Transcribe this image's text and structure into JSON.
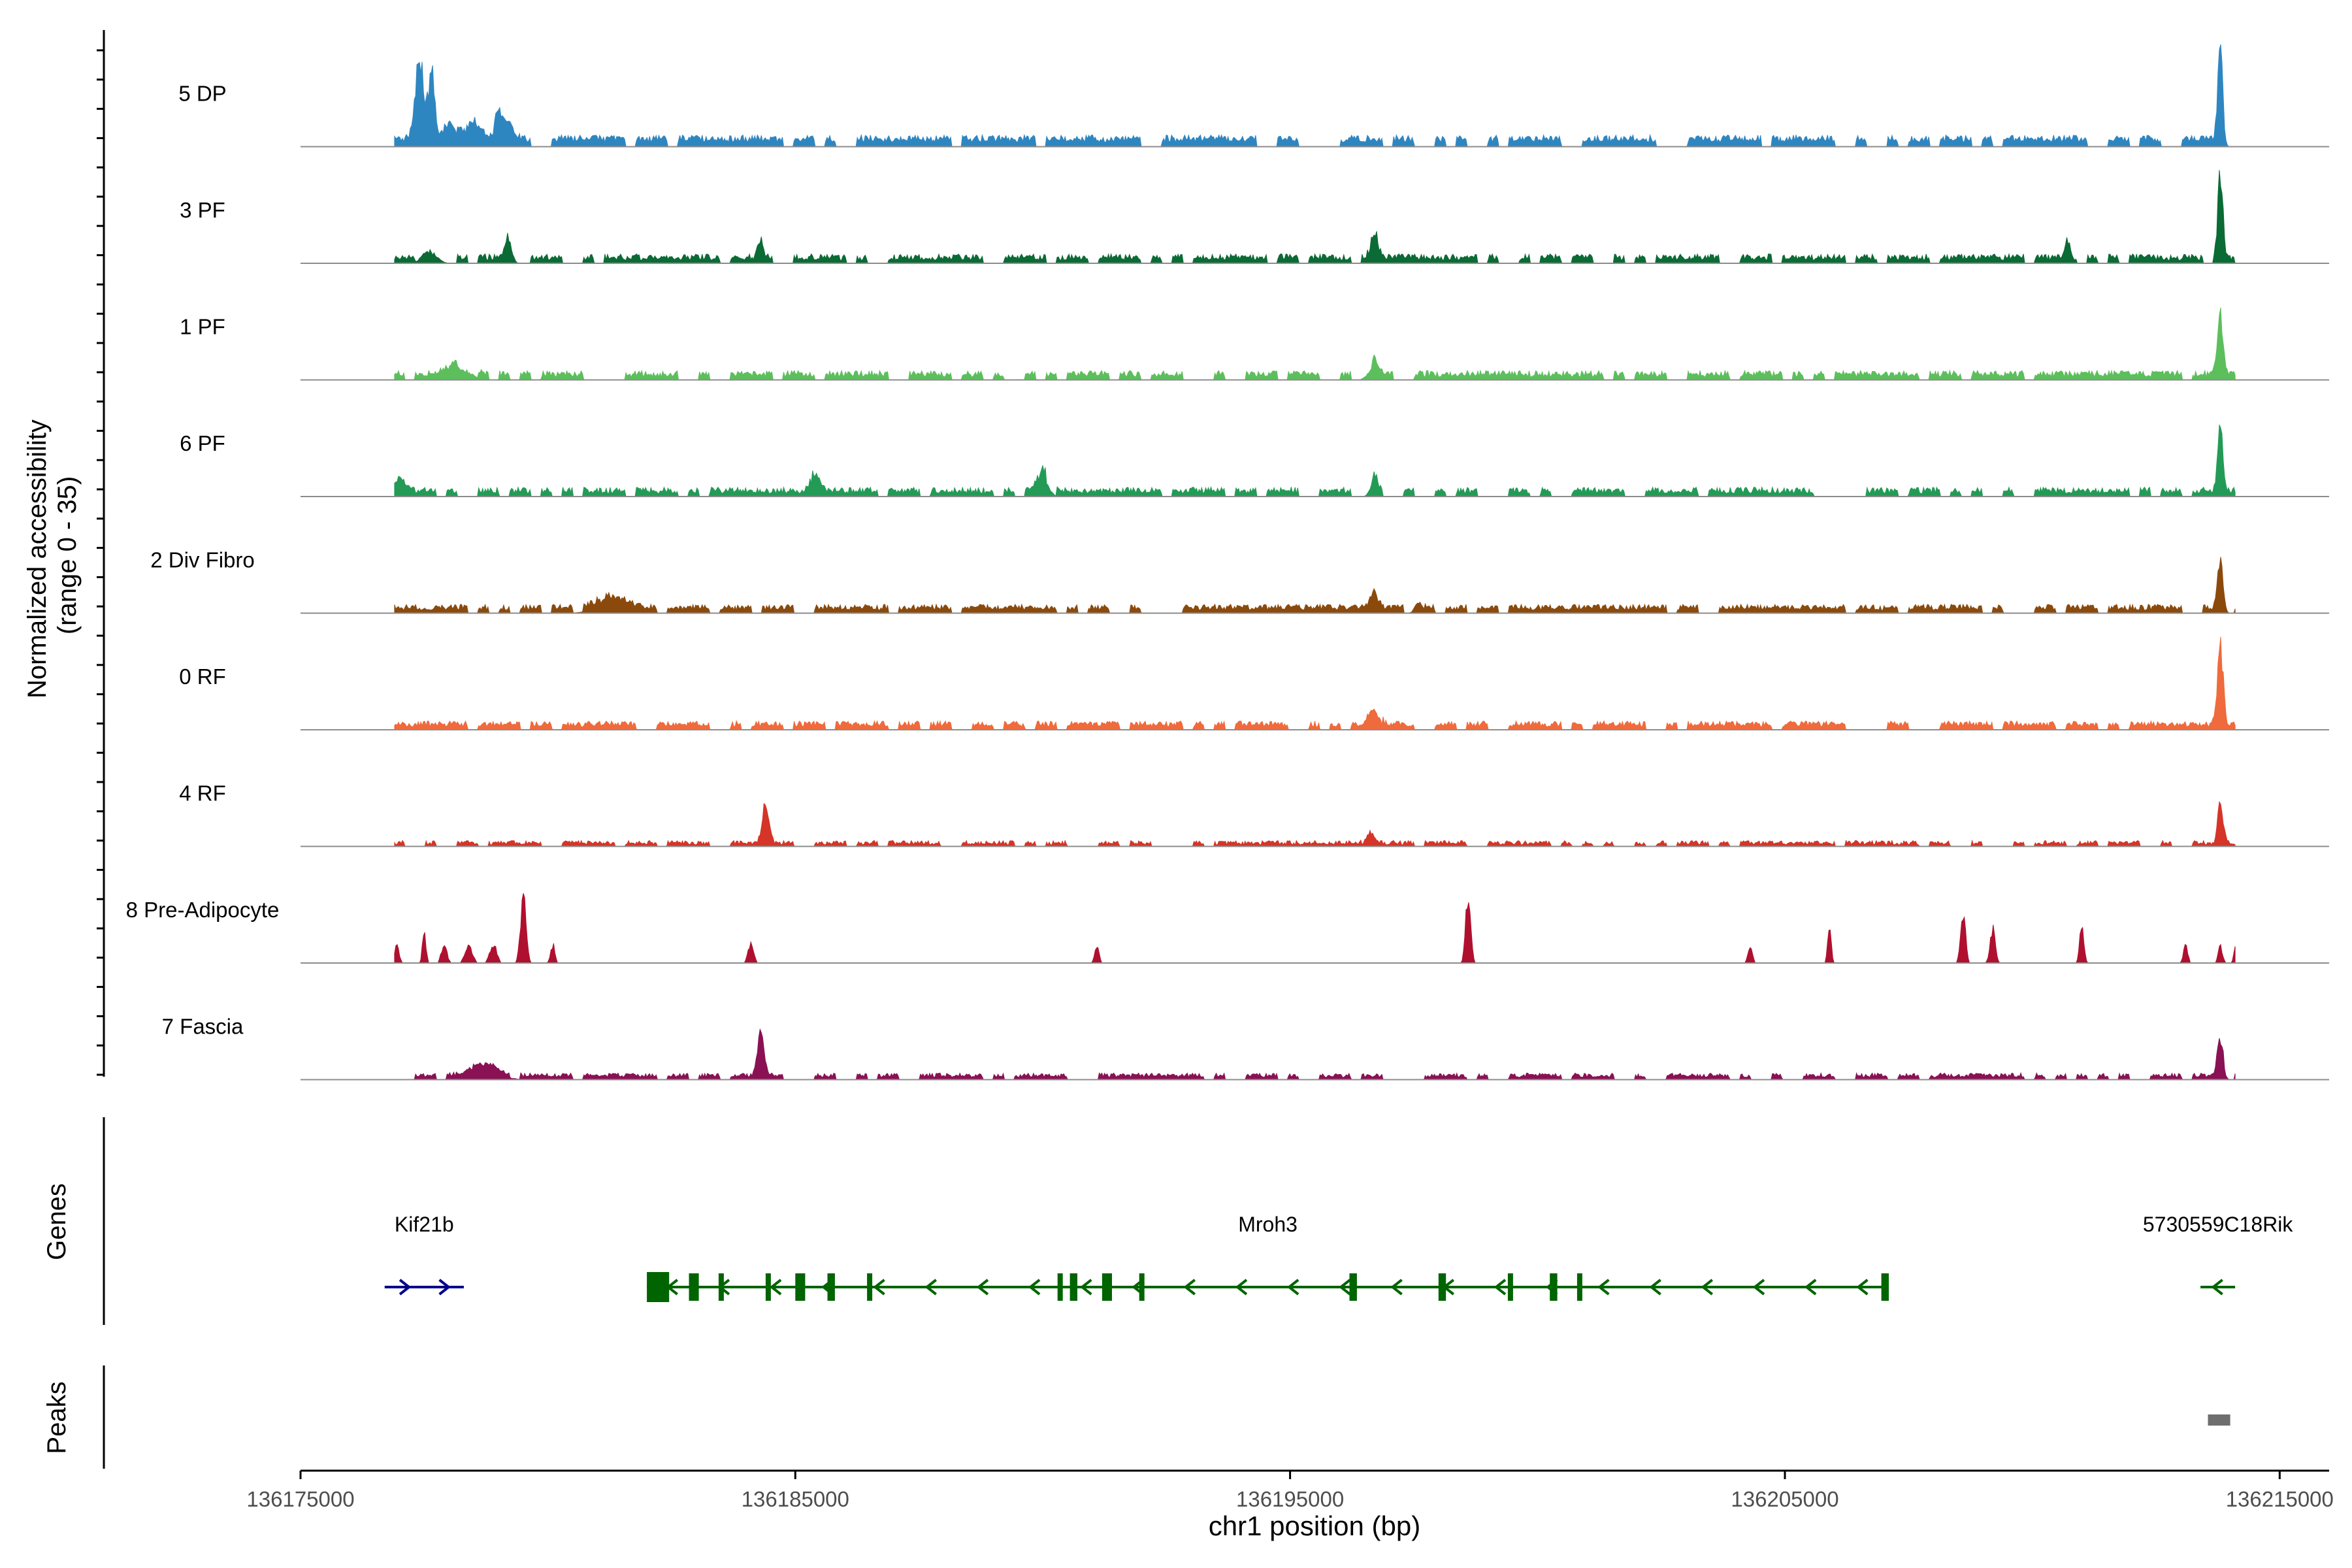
{
  "chart_data": {
    "type": "area",
    "title": "",
    "ylabel_line1": "Normalized accessibility",
    "ylabel_line2": "(range 0 - 35)",
    "yrange": [
      0,
      35
    ],
    "xlabel": "chr1 position (bp)",
    "xlim": [
      136175000,
      136216000
    ],
    "xticks": [
      136175000,
      136185000,
      136195000,
      136205000,
      136215000
    ],
    "xtick_labels": [
      "136175000",
      "136185000",
      "136195000",
      "136205000",
      "136215000"
    ],
    "signal_range_bp": [
      136176900,
      136214100
    ],
    "tracks": [
      {
        "name": "5 DP",
        "color": "#2e86c1",
        "baseline": 3,
        "noise": 2.5,
        "peaks": [
          [
            136177400,
            28,
            120
          ],
          [
            136177650,
            22,
            90
          ],
          [
            136178000,
            8,
            200
          ],
          [
            136178500,
            6,
            200
          ],
          [
            136179000,
            10,
            90
          ],
          [
            136179200,
            6,
            150
          ],
          [
            136213800,
            33,
            70
          ]
        ]
      },
      {
        "name": "3 PF",
        "color": "#0b6b35",
        "baseline": 2,
        "noise": 2.2,
        "peaks": [
          [
            136177600,
            4,
            200
          ],
          [
            136179200,
            7,
            100
          ],
          [
            136184300,
            6,
            80
          ],
          [
            136196700,
            9,
            100
          ],
          [
            136210700,
            5,
            80
          ],
          [
            136213800,
            30,
            70
          ]
        ]
      },
      {
        "name": "1 PF",
        "color": "#5cbf5c",
        "baseline": 2,
        "noise": 2.2,
        "peaks": [
          [
            136178200,
            4,
            300
          ],
          [
            136196700,
            5,
            150
          ],
          [
            136213800,
            22,
            80
          ]
        ]
      },
      {
        "name": "6 PF",
        "color": "#239b56",
        "baseline": 2,
        "noise": 2.2,
        "peaks": [
          [
            136177000,
            4,
            150
          ],
          [
            136185400,
            6,
            120
          ],
          [
            136190000,
            7,
            150
          ],
          [
            136196700,
            6,
            100
          ],
          [
            136213800,
            22,
            70
          ]
        ]
      },
      {
        "name": "2 Div Fibro",
        "color": "#8b4a0c",
        "baseline": 2,
        "noise": 2.0,
        "peaks": [
          [
            136181300,
            4,
            400
          ],
          [
            136196700,
            6,
            100
          ],
          [
            136197600,
            4,
            100
          ],
          [
            136213800,
            15,
            80
          ]
        ]
      },
      {
        "name": "0 RF",
        "color": "#ef6a3c",
        "baseline": 2,
        "noise": 2.0,
        "peaks": [
          [
            136196700,
            6,
            150
          ],
          [
            136213800,
            27,
            80
          ]
        ]
      },
      {
        "name": "4 RF",
        "color": "#d43528",
        "baseline": 1,
        "noise": 1.5,
        "peaks": [
          [
            136184400,
            14,
            90
          ],
          [
            136196600,
            5,
            100
          ],
          [
            136213800,
            14,
            80
          ]
        ]
      },
      {
        "name": "8 Pre-Adipocyte",
        "color": "#b0102f",
        "baseline": 0,
        "noise": 0,
        "peaks": [
          [
            136176950,
            6,
            60
          ],
          [
            136177500,
            10,
            50
          ],
          [
            136177900,
            6,
            80
          ],
          [
            136178400,
            6,
            100
          ],
          [
            136178900,
            6,
            100
          ],
          [
            136179500,
            22,
            80
          ],
          [
            136180100,
            6,
            60
          ],
          [
            136184100,
            6,
            80
          ],
          [
            136191100,
            6,
            60
          ],
          [
            136198600,
            24,
            70
          ],
          [
            136204300,
            6,
            60
          ],
          [
            136205900,
            12,
            50
          ],
          [
            136208600,
            17,
            70
          ],
          [
            136209200,
            12,
            70
          ],
          [
            136211000,
            12,
            60
          ],
          [
            136213100,
            6,
            60
          ],
          [
            136213800,
            6,
            60
          ],
          [
            136214100,
            6,
            40
          ]
        ]
      },
      {
        "name": "7 Fascia",
        "color": "#8a1154",
        "baseline": 1.5,
        "noise": 1.5,
        "peaks": [
          [
            136178700,
            4,
            400
          ],
          [
            136184300,
            14,
            90
          ],
          [
            136213800,
            13,
            80
          ]
        ]
      }
    ],
    "genes_track_label": "Genes",
    "genes": [
      {
        "name": "Kif21b",
        "strand": "+",
        "color": "#00008b",
        "start": 136176700,
        "end": 136178300,
        "exons": []
      },
      {
        "name": "Mroh3",
        "strand": "-",
        "color": "#006400",
        "start": 136182000,
        "end": 136207100,
        "exons": [
          [
            136182000,
            136182450
          ],
          [
            136182850,
            136183050
          ],
          [
            136183450,
            136183550
          ],
          [
            136184400,
            136184500
          ],
          [
            136185000,
            136185200
          ],
          [
            136185650,
            136185800
          ],
          [
            136186450,
            136186550
          ],
          [
            136190300,
            136190400
          ],
          [
            136190550,
            136190700
          ],
          [
            136191200,
            136191400
          ],
          [
            136191950,
            136192050
          ],
          [
            136196200,
            136196350
          ],
          [
            136198000,
            136198150
          ],
          [
            136199400,
            136199500
          ],
          [
            136200250,
            136200400
          ],
          [
            136200800,
            136200900
          ],
          [
            136206950,
            136207100
          ]
        ]
      },
      {
        "name": "5730559C18Rik",
        "strand": "-",
        "color": "#006400",
        "start": 136213400,
        "end": 136214100,
        "exons": []
      }
    ],
    "peaks_track_label": "Peaks",
    "called_peaks": [
      [
        136213550,
        136214000
      ]
    ],
    "peak_color": "#6e6e6e"
  }
}
